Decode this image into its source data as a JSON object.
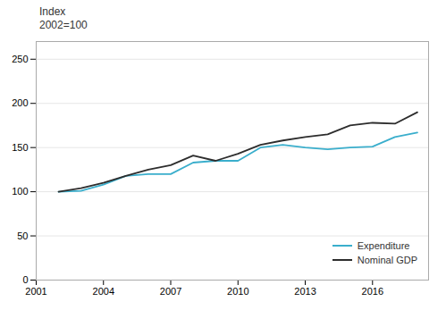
{
  "chart_data": {
    "type": "line",
    "ylabel": "Index\n2002=100",
    "x": [
      2002,
      2003,
      2004,
      2005,
      2006,
      2007,
      2008,
      2009,
      2010,
      2011,
      2012,
      2013,
      2014,
      2015,
      2016,
      2017,
      2018
    ],
    "series": [
      {
        "name": "Expenditure",
        "color": "#3aaecc",
        "values": [
          100,
          101,
          108,
          118,
          120,
          120,
          133,
          135,
          135,
          150,
          153,
          150,
          148,
          150,
          151,
          162,
          167
        ]
      },
      {
        "name": "Nominal GDP",
        "color": "#2d2d2d",
        "values": [
          100,
          104,
          110,
          118,
          125,
          130,
          141,
          135,
          143,
          153,
          158,
          162,
          165,
          175,
          178,
          177,
          190
        ]
      }
    ],
    "xlim": [
      2001,
      2018.5
    ],
    "xticks": [
      2001,
      2004,
      2007,
      2010,
      2013,
      2016
    ],
    "ylim": [
      0,
      270
    ],
    "yticks": [
      0,
      50,
      100,
      150,
      200,
      250
    ],
    "grid": true,
    "legend": "lower right"
  }
}
